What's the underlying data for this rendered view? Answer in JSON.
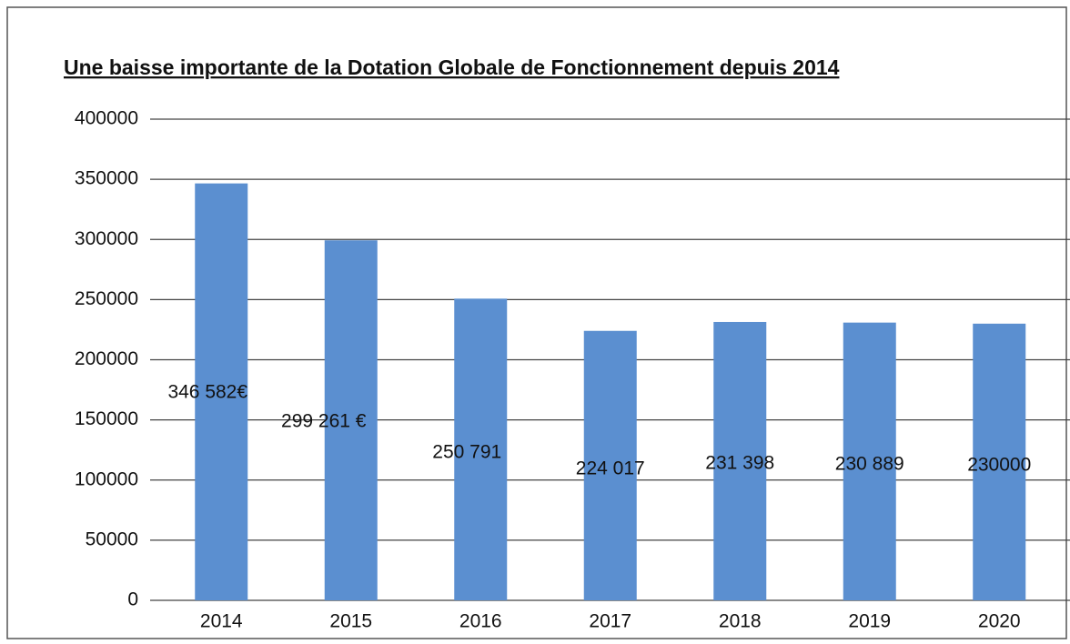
{
  "chart_data": {
    "type": "bar",
    "title": "Une baisse importante de la Dotation Globale de Fonctionnement depuis 2014",
    "categories": [
      "2014",
      "2015",
      "2016",
      "2017",
      "2018",
      "2019",
      "2020"
    ],
    "values": [
      346582,
      299261,
      250791,
      224017,
      231398,
      230889,
      230000
    ],
    "value_labels": [
      "346 582€",
      "299 261 €",
      "250 791",
      "224 017",
      "231 398",
      "230 889",
      "230000"
    ],
    "color": "#5b8fd0",
    "ylim": [
      0,
      400000
    ],
    "yticks": [
      0,
      50000,
      100000,
      150000,
      200000,
      250000,
      300000,
      350000,
      400000
    ],
    "grid": true
  }
}
